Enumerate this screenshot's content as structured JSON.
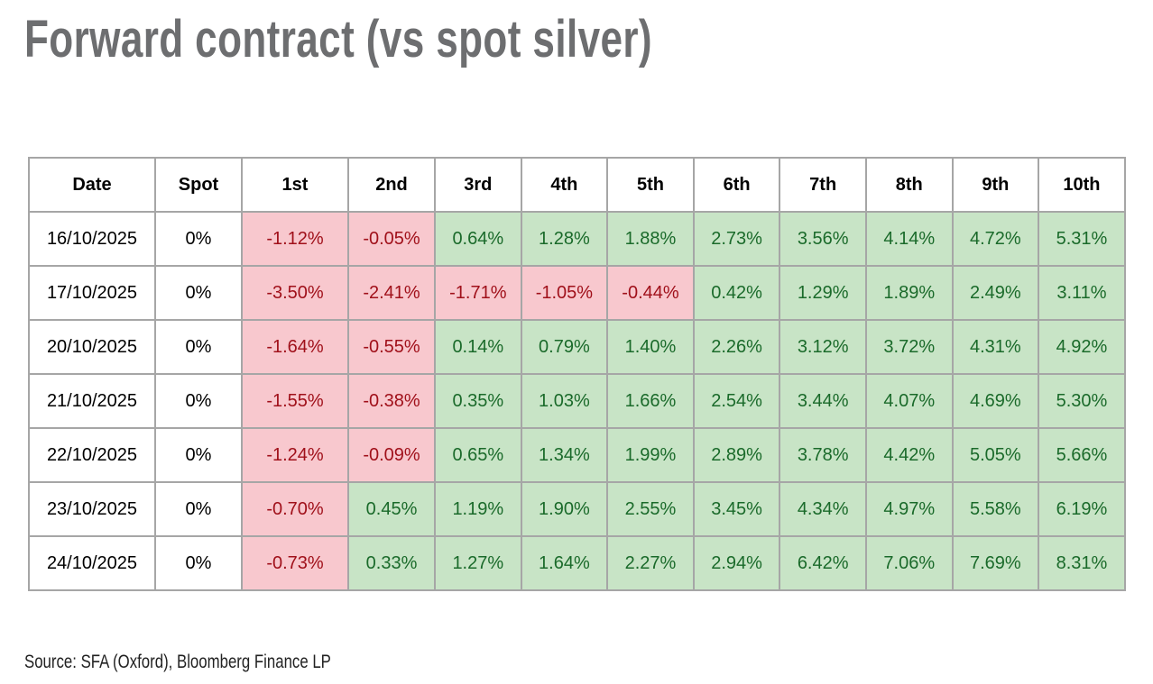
{
  "title": "Forward contract (vs spot silver)",
  "table": {
    "header": [
      "Date",
      "Spot",
      "1st",
      "2nd",
      "3rd",
      "4th",
      "5th",
      "6th",
      "7th",
      "8th",
      "9th",
      "10th"
    ],
    "rows": [
      [
        "16/10/2025",
        "0%",
        "-1.12%",
        "-0.05%",
        "0.64%",
        "1.28%",
        "1.88%",
        "2.73%",
        "3.56%",
        "4.14%",
        "4.72%",
        "5.31%"
      ],
      [
        "17/10/2025",
        "0%",
        "-3.50%",
        "-2.41%",
        "-1.71%",
        "-1.05%",
        "-0.44%",
        "0.42%",
        "1.29%",
        "1.89%",
        "2.49%",
        "3.11%"
      ],
      [
        "20/10/2025",
        "0%",
        "-1.64%",
        "-0.55%",
        "0.14%",
        "0.79%",
        "1.40%",
        "2.26%",
        "3.12%",
        "3.72%",
        "4.31%",
        "4.92%"
      ],
      [
        "21/10/2025",
        "0%",
        "-1.55%",
        "-0.38%",
        "0.35%",
        "1.03%",
        "1.66%",
        "2.54%",
        "3.44%",
        "4.07%",
        "4.69%",
        "5.30%"
      ],
      [
        "22/10/2025",
        "0%",
        "-1.24%",
        "-0.09%",
        "0.65%",
        "1.34%",
        "1.99%",
        "2.89%",
        "3.78%",
        "4.42%",
        "5.05%",
        "5.66%"
      ],
      [
        "23/10/2025",
        "0%",
        "-0.70%",
        "0.45%",
        "1.19%",
        "1.90%",
        "2.55%",
        "3.45%",
        "4.34%",
        "4.97%",
        "5.58%",
        "6.19%"
      ],
      [
        "24/10/2025",
        "0%",
        "-0.73%",
        "0.33%",
        "1.27%",
        "1.64%",
        "2.27%",
        "2.94%",
        "6.42%",
        "7.06%",
        "7.69%",
        "8.31%"
      ]
    ]
  },
  "source": "Source: SFA (Oxford), Bloomberg Finance LP"
}
